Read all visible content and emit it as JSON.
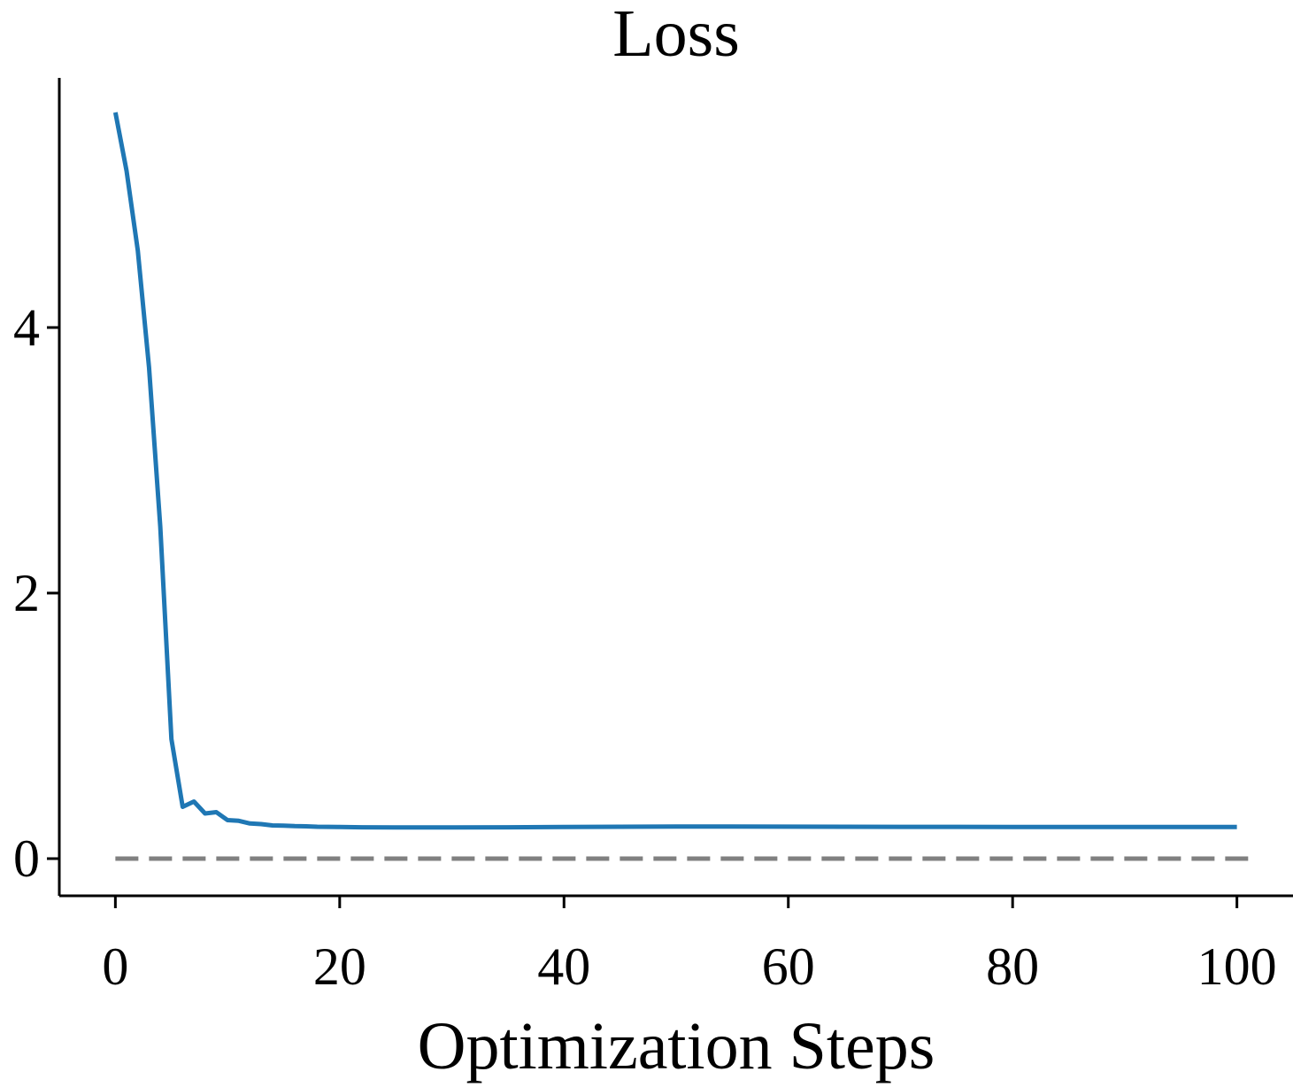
{
  "chart_data": {
    "type": "line",
    "title": "Loss",
    "xlabel": "Optimization Steps",
    "ylabel": "",
    "xlim": [
      -5,
      105
    ],
    "ylim": [
      -0.28,
      5.88
    ],
    "xticks": [
      0,
      20,
      40,
      60,
      80,
      100
    ],
    "yticks": [
      0,
      2,
      4
    ],
    "grid": false,
    "colors": {
      "series": "#1f77b4",
      "reference": "#808080"
    },
    "series": [
      {
        "x": [
          0,
          1,
          2,
          3,
          4,
          5,
          6,
          7,
          8,
          9,
          10,
          11,
          12,
          13,
          14,
          15,
          16,
          17,
          18,
          19,
          20,
          22,
          25,
          30,
          35,
          40,
          45,
          50,
          55,
          60,
          65,
          70,
          75,
          80,
          85,
          90,
          95,
          100
        ],
        "y": [
          5.62,
          5.18,
          4.58,
          3.7,
          2.5,
          0.9,
          0.39,
          0.43,
          0.34,
          0.35,
          0.29,
          0.285,
          0.265,
          0.26,
          0.25,
          0.248,
          0.245,
          0.243,
          0.24,
          0.239,
          0.238,
          0.236,
          0.235,
          0.235,
          0.236,
          0.238,
          0.24,
          0.242,
          0.242,
          0.241,
          0.24,
          0.239,
          0.239,
          0.238,
          0.238,
          0.238,
          0.238,
          0.238
        ]
      }
    ],
    "reference_line": {
      "y": 0,
      "x_range": [
        0,
        101
      ],
      "style": "dashed"
    }
  }
}
